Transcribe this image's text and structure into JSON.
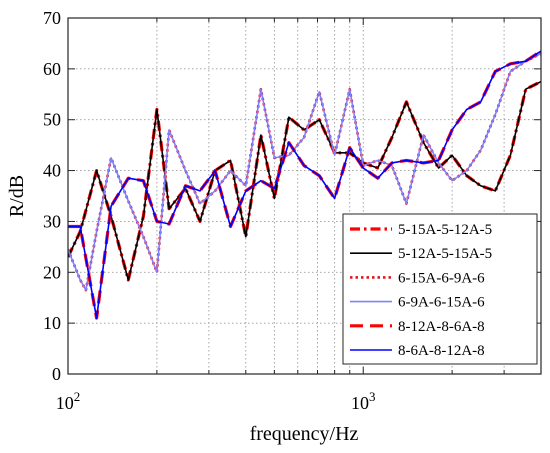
{
  "chart_data": {
    "type": "line",
    "title": "",
    "xlabel": "frequency/Hz",
    "ylabel": "R/dB",
    "xscale": "log",
    "xlim": [
      100,
      4000
    ],
    "ylim": [
      0,
      70
    ],
    "grid": true,
    "legend_position": "bottom-right",
    "x_ticks": [
      {
        "value": 100,
        "base": "10",
        "exp": "2"
      },
      {
        "value": 1000,
        "base": "10",
        "exp": "3"
      }
    ],
    "y_ticks": [
      0,
      10,
      20,
      30,
      40,
      50,
      60,
      70
    ],
    "series": [
      {
        "name": "5-15A-5-12A-5",
        "color": "#ff0000",
        "style": "dashdot",
        "width": 3.2,
        "x": [
          100,
          110,
          125,
          140,
          160,
          180,
          200,
          220,
          250,
          280,
          315,
          355,
          400,
          450,
          500,
          560,
          630,
          710,
          800,
          900,
          1000,
          1120,
          1250,
          1400,
          1600,
          1800,
          2000,
          2240,
          2500,
          2800,
          3150,
          3550,
          4000
        ],
        "values": [
          23,
          28,
          40,
          31,
          18.5,
          31,
          52,
          32.5,
          36.5,
          30,
          40,
          42,
          27,
          47,
          34.5,
          50.5,
          48,
          50,
          43.5,
          43.5,
          41.5,
          40.5,
          46.5,
          53.5,
          45.5,
          40.5,
          43,
          39,
          37,
          36,
          43,
          56,
          57.5
        ]
      },
      {
        "name": "5-12A-5-15A-5",
        "color": "#000000",
        "style": "solid",
        "width": 1.6,
        "x": [
          100,
          110,
          125,
          140,
          160,
          180,
          200,
          220,
          250,
          280,
          315,
          355,
          400,
          450,
          500,
          560,
          630,
          710,
          800,
          900,
          1000,
          1120,
          1250,
          1400,
          1600,
          1800,
          2000,
          2240,
          2500,
          2800,
          3150,
          3550,
          4000
        ],
        "values": [
          23,
          28,
          40,
          31,
          18.5,
          31,
          52,
          32.5,
          36.5,
          30,
          40,
          42,
          27,
          47,
          34.5,
          50.5,
          48,
          50,
          43.5,
          43.5,
          41.5,
          40.5,
          46.5,
          53.5,
          45.5,
          40.5,
          43,
          39,
          37,
          36,
          43,
          56,
          57.5
        ]
      },
      {
        "name": "6-15A-6-9A-6",
        "color": "#e0141e",
        "style": "dotted",
        "width": 2.6,
        "x": [
          100,
          110,
          115,
          125,
          140,
          160,
          180,
          200,
          220,
          250,
          280,
          315,
          355,
          400,
          450,
          500,
          560,
          630,
          710,
          800,
          900,
          1000,
          1120,
          1250,
          1400,
          1600,
          1800,
          2000,
          2240,
          2500,
          2800,
          3150,
          3550,
          4000
        ],
        "values": [
          24.5,
          18.5,
          16.5,
          28,
          42.5,
          34,
          27,
          20,
          48,
          40,
          33.5,
          36,
          40,
          37,
          56,
          42.5,
          43,
          46.5,
          55.5,
          43,
          56,
          41,
          42,
          41,
          33.5,
          47,
          41.5,
          38,
          40,
          44,
          51,
          59.5,
          61.5,
          63
        ]
      },
      {
        "name": "6-9A-6-15A-6",
        "color": "#8080ff",
        "style": "solid",
        "width": 1.6,
        "x": [
          100,
          110,
          115,
          125,
          140,
          160,
          180,
          200,
          220,
          250,
          280,
          315,
          355,
          400,
          450,
          500,
          560,
          630,
          710,
          800,
          900,
          1000,
          1120,
          1250,
          1400,
          1600,
          1800,
          2000,
          2240,
          2500,
          2800,
          3150,
          3550,
          4000
        ],
        "values": [
          24.5,
          18.5,
          16.5,
          28,
          42.5,
          34,
          27,
          20,
          48,
          40,
          33.5,
          36,
          40,
          37,
          56,
          42.5,
          43,
          46.5,
          55.5,
          43,
          56,
          41,
          42,
          41,
          33.5,
          47,
          41.5,
          38,
          40,
          44,
          51,
          59.5,
          61.5,
          63
        ]
      },
      {
        "name": "8-12A-8-6A-8",
        "color": "#ff0000",
        "style": "dashed",
        "width": 3.2,
        "x": [
          100,
          110,
          125,
          140,
          160,
          180,
          200,
          220,
          250,
          280,
          315,
          355,
          400,
          450,
          500,
          560,
          630,
          710,
          800,
          900,
          1000,
          1120,
          1250,
          1400,
          1600,
          1800,
          2000,
          2240,
          2500,
          2800,
          3150,
          3550,
          4000
        ],
        "values": [
          29,
          29,
          11,
          33,
          38.5,
          38,
          30,
          29.5,
          37,
          36,
          40,
          29,
          36,
          38,
          36.5,
          45.5,
          41,
          39,
          34.5,
          44.5,
          40.5,
          38.5,
          41.5,
          42,
          41.5,
          42,
          48,
          52,
          53.5,
          59.5,
          61,
          61.5,
          63.5
        ]
      },
      {
        "name": "8-6A-8-12A-8",
        "color": "#0000ff",
        "style": "solid",
        "width": 1.6,
        "x": [
          100,
          110,
          125,
          140,
          160,
          180,
          200,
          220,
          250,
          280,
          315,
          355,
          400,
          450,
          500,
          560,
          630,
          710,
          800,
          900,
          1000,
          1120,
          1250,
          1400,
          1600,
          1800,
          2000,
          2240,
          2500,
          2800,
          3150,
          3550,
          4000
        ],
        "values": [
          29,
          29,
          11,
          33,
          38.5,
          38,
          30,
          29.5,
          37,
          36,
          40,
          29,
          36,
          38,
          36.5,
          45.5,
          41,
          39,
          34.5,
          44.5,
          40.5,
          38.5,
          41.5,
          42,
          41.5,
          42,
          48,
          52,
          53.5,
          59.5,
          61,
          61.5,
          63.5
        ]
      }
    ]
  }
}
